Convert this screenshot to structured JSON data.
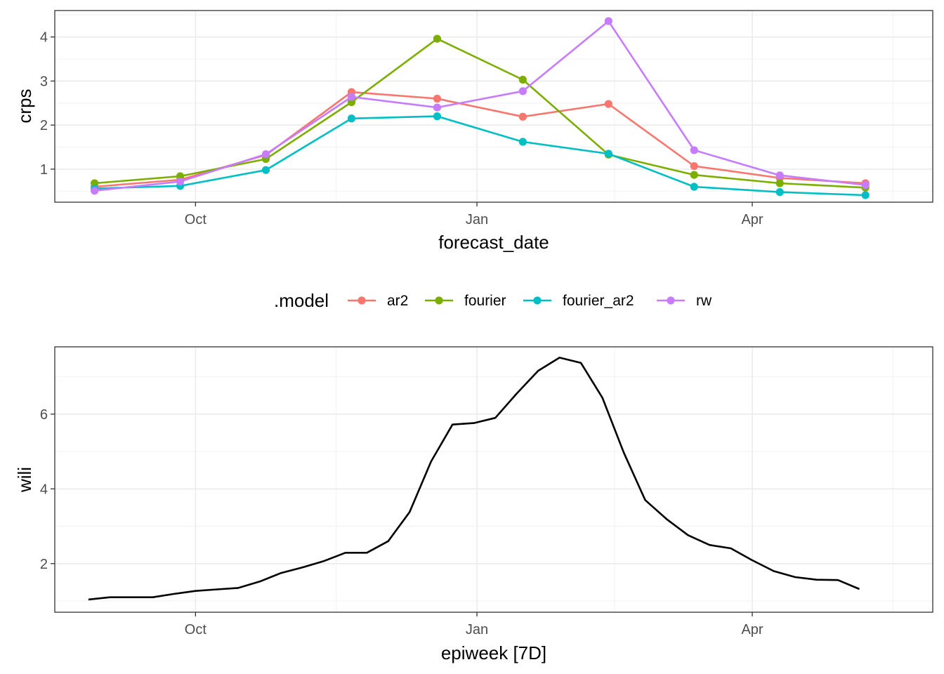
{
  "colors": {
    "ar2": "#F8766D",
    "fourier": "#7CAE00",
    "fourier_ar2": "#00BFC4",
    "rw": "#C77CFF",
    "wili_line": "#000000"
  },
  "legend": {
    "title": ".model",
    "placement": "between-panels"
  },
  "chart_data": [
    {
      "type": "line",
      "xlabel": "forecast_date",
      "ylabel": "crps",
      "x_ticks": [
        {
          "date": "2017-10-01",
          "label": "Oct"
        },
        {
          "date": "2018-01-01",
          "label": "Jan"
        },
        {
          "date": "2018-04-01",
          "label": "Apr"
        }
      ],
      "y_ticks": [
        1,
        2,
        3,
        4
      ],
      "ylim": [
        0.25,
        4.6
      ],
      "xlim": [
        "2017-08-16",
        "2018-05-30"
      ],
      "grid": true,
      "markers": true,
      "x": [
        "2017-08-29",
        "2017-09-26",
        "2017-10-24",
        "2017-11-21",
        "2017-12-19",
        "2018-01-16",
        "2018-02-13",
        "2018-03-13",
        "2018-04-10",
        "2018-05-08"
      ],
      "series": [
        {
          "name": "ar2",
          "color_key": "ar2",
          "values": [
            0.6,
            0.76,
            1.32,
            2.75,
            2.6,
            2.19,
            2.48,
            1.07,
            0.8,
            0.68
          ]
        },
        {
          "name": "fourier",
          "color_key": "fourier",
          "values": [
            0.68,
            0.84,
            1.23,
            2.52,
            3.96,
            3.03,
            1.33,
            0.87,
            0.68,
            0.58
          ]
        },
        {
          "name": "fourier_ar2",
          "color_key": "fourier_ar2",
          "values": [
            0.56,
            0.62,
            0.98,
            2.15,
            2.2,
            1.62,
            1.35,
            0.6,
            0.48,
            0.41
          ]
        },
        {
          "name": "rw",
          "color_key": "rw",
          "values": [
            0.51,
            0.72,
            1.34,
            2.64,
            2.4,
            2.77,
            4.36,
            1.43,
            0.86,
            0.64
          ]
        }
      ]
    },
    {
      "type": "line",
      "xlabel": "epiweek [7D]",
      "ylabel": "wili",
      "x_ticks": [
        {
          "date": "2017-10-01",
          "label": "Oct"
        },
        {
          "date": "2018-01-01",
          "label": "Jan"
        },
        {
          "date": "2018-04-01",
          "label": "Apr"
        }
      ],
      "y_ticks": [
        2,
        4,
        6
      ],
      "ylim": [
        0.7,
        7.8
      ],
      "xlim": [
        "2017-08-16",
        "2018-05-30"
      ],
      "grid": true,
      "markers": false,
      "x": [
        "2017-08-27",
        "2017-09-03",
        "2017-09-10",
        "2017-09-17",
        "2017-09-24",
        "2017-10-01",
        "2017-10-08",
        "2017-10-15",
        "2017-10-22",
        "2017-10-29",
        "2017-11-05",
        "2017-11-12",
        "2017-11-19",
        "2017-11-26",
        "2017-12-03",
        "2017-12-10",
        "2017-12-17",
        "2017-12-24",
        "2017-12-31",
        "2018-01-07",
        "2018-01-14",
        "2018-01-21",
        "2018-01-28",
        "2018-02-04",
        "2018-02-11",
        "2018-02-18",
        "2018-02-25",
        "2018-03-04",
        "2018-03-11",
        "2018-03-18",
        "2018-03-25",
        "2018-04-01",
        "2018-04-08",
        "2018-04-15",
        "2018-04-22",
        "2018-04-29",
        "2018-05-06"
      ],
      "series": [
        {
          "color_key": "wili_line",
          "values": [
            1.04,
            1.1,
            1.1,
            1.1,
            1.19,
            1.27,
            1.31,
            1.35,
            1.52,
            1.75,
            1.9,
            2.07,
            2.29,
            2.29,
            2.6,
            3.38,
            4.73,
            5.72,
            5.76,
            5.9,
            6.55,
            7.16,
            7.51,
            7.37,
            6.44,
            4.97,
            3.7,
            3.19,
            2.76,
            2.5,
            2.41,
            2.09,
            1.8,
            1.64,
            1.57,
            1.56,
            1.32
          ]
        }
      ]
    }
  ]
}
